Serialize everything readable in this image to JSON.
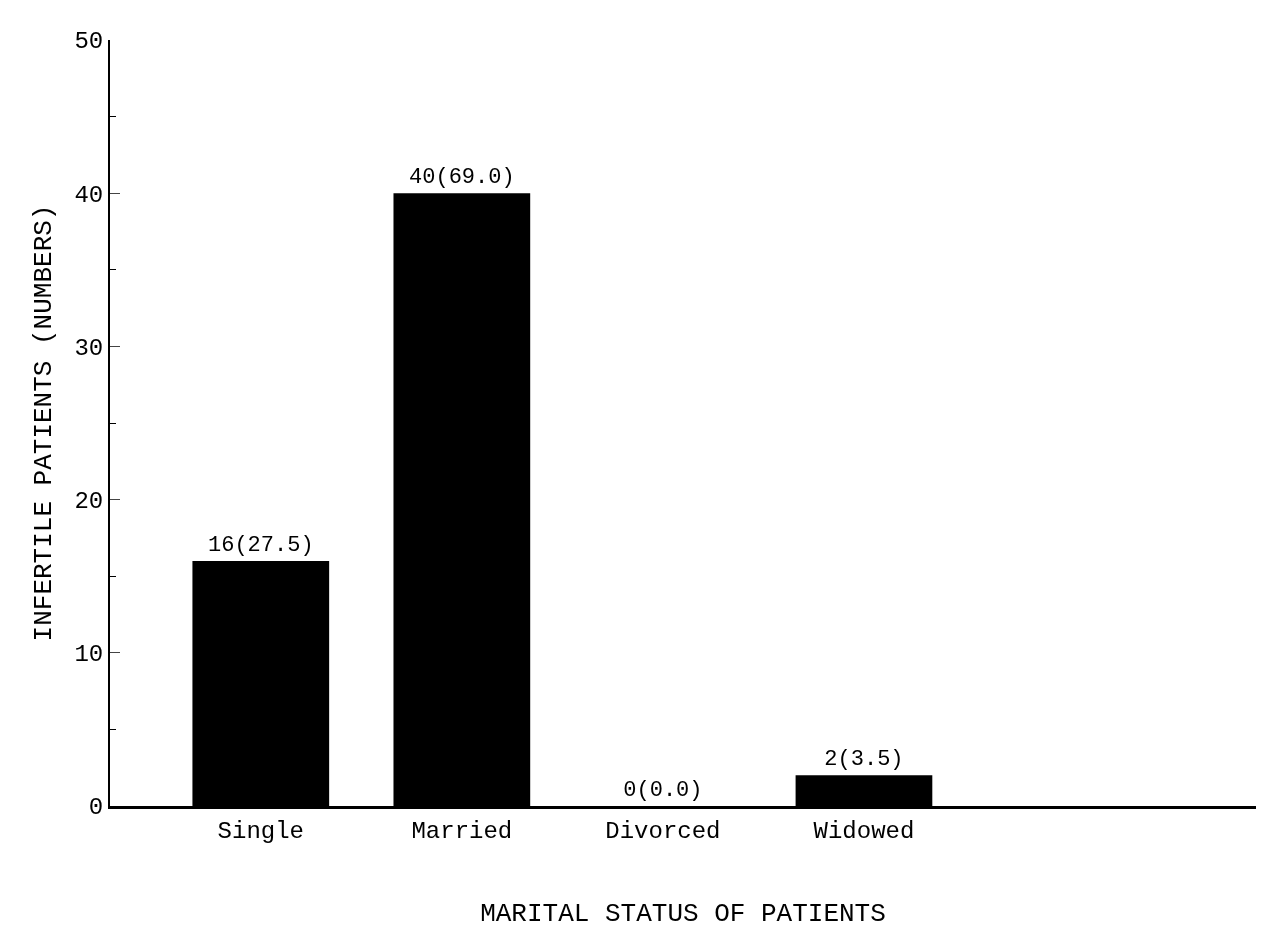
{
  "chart_data": {
    "type": "bar",
    "xlabel": "MARITAL STATUS OF PATIENTS",
    "ylabel": "INFERTILE PATIENTS (NUMBERS)",
    "categories": [
      "Single",
      "Married",
      "Divorced",
      "Widowed"
    ],
    "values": [
      16,
      40,
      0,
      2
    ],
    "value_labels": [
      "16(27.5)",
      "40(69.0)",
      "0(0.0)",
      "2(3.5)"
    ],
    "color": "#000000",
    "ylim": [
      0,
      50
    ],
    "yticks": [
      0,
      10,
      20,
      30,
      40,
      50
    ],
    "legend": false
  }
}
